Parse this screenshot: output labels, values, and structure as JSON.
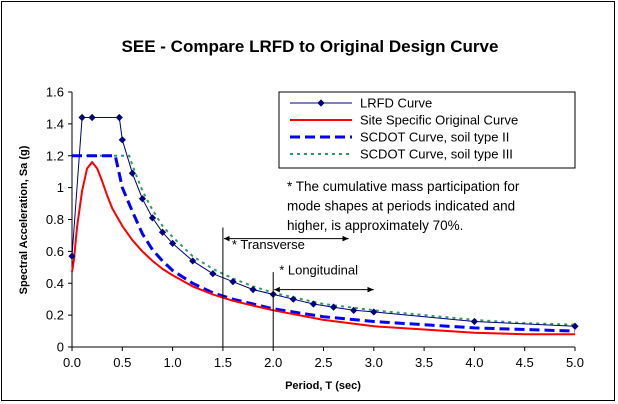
{
  "chart_data": {
    "type": "line",
    "title": "SEE - Compare LRFD to Original Design Curve",
    "xlabel": "Period, T (sec)",
    "ylabel": "Spectral Acceleration, Sa (g)",
    "xlim": [
      0,
      5
    ],
    "ylim": [
      0,
      1.6
    ],
    "x_ticks": [
      "0.0",
      "0.5",
      "1.0",
      "1.5",
      "2.0",
      "2.5",
      "3.0",
      "3.5",
      "4.0",
      "4.5",
      "5.0"
    ],
    "y_ticks": [
      "0",
      "0.2",
      "0.4",
      "0.6",
      "0.8",
      "1",
      "1.2",
      "1.4",
      "1.6"
    ],
    "grid": false,
    "legend_position": "top-right",
    "series": [
      {
        "name": "LRFD Curve",
        "color": "#000080",
        "style": "solid-diamond",
        "x": [
          0.0,
          0.1,
          0.2,
          0.47,
          0.5,
          0.6,
          0.7,
          0.8,
          0.9,
          1.0,
          1.2,
          1.4,
          1.6,
          1.8,
          2.0,
          2.2,
          2.4,
          2.6,
          2.8,
          3.0,
          4.0,
          5.0
        ],
        "y": [
          0.57,
          1.44,
          1.44,
          1.44,
          1.3,
          1.09,
          0.93,
          0.81,
          0.72,
          0.65,
          0.54,
          0.46,
          0.41,
          0.36,
          0.33,
          0.3,
          0.27,
          0.25,
          0.23,
          0.22,
          0.16,
          0.13
        ]
      },
      {
        "name": "Site Specific Original Curve",
        "color": "#ff0000",
        "style": "solid",
        "x": [
          0.0,
          0.02,
          0.05,
          0.1,
          0.15,
          0.2,
          0.25,
          0.3,
          0.35,
          0.4,
          0.5,
          0.6,
          0.7,
          0.8,
          0.9,
          1.0,
          1.2,
          1.4,
          1.6,
          1.8,
          2.0,
          2.5,
          3.0,
          3.5,
          4.0,
          4.5,
          5.0
        ],
        "y": [
          0.47,
          0.55,
          0.75,
          0.98,
          1.12,
          1.16,
          1.12,
          1.04,
          0.95,
          0.87,
          0.76,
          0.67,
          0.6,
          0.54,
          0.49,
          0.45,
          0.38,
          0.33,
          0.29,
          0.26,
          0.23,
          0.17,
          0.13,
          0.11,
          0.09,
          0.08,
          0.08
        ]
      },
      {
        "name": "SCDOT Curve, soil type II",
        "color": "#0000ff",
        "style": "dashed",
        "x": [
          0.0,
          0.1,
          0.2,
          0.3,
          0.4,
          0.43,
          0.5,
          0.6,
          0.7,
          0.8,
          0.9,
          1.0,
          1.2,
          1.4,
          1.6,
          1.8,
          2.0,
          2.5,
          3.0,
          3.5,
          4.0,
          4.5,
          5.0
        ],
        "y": [
          1.2,
          1.2,
          1.2,
          1.2,
          1.2,
          1.2,
          1.0,
          0.85,
          0.71,
          0.61,
          0.54,
          0.48,
          0.4,
          0.34,
          0.3,
          0.27,
          0.24,
          0.19,
          0.16,
          0.14,
          0.12,
          0.11,
          0.1
        ]
      },
      {
        "name": "SCDOT Curve, soil type III",
        "color": "#339966",
        "style": "dotted",
        "x": [
          0.0,
          0.1,
          0.2,
          0.3,
          0.4,
          0.5,
          0.57,
          0.6,
          0.7,
          0.8,
          0.9,
          1.0,
          1.2,
          1.4,
          1.6,
          1.8,
          2.0,
          2.5,
          3.0,
          3.5,
          4.0,
          4.5,
          5.0
        ],
        "y": [
          1.2,
          1.2,
          1.2,
          1.2,
          1.2,
          1.2,
          1.2,
          1.14,
          0.98,
          0.86,
          0.76,
          0.69,
          0.57,
          0.49,
          0.43,
          0.38,
          0.34,
          0.27,
          0.23,
          0.2,
          0.17,
          0.15,
          0.14
        ]
      }
    ],
    "annotations": {
      "note": [
        "* The cumulative mass participation for",
        "mode shapes at periods indicated and",
        "higher, is approximately 70%."
      ],
      "transverse": {
        "label": "* Transverse",
        "period": 1.5,
        "arrow_to": 2.75,
        "arrow_y": 0.68
      },
      "longitudinal": {
        "label": "* Longitudinal",
        "period": 2.0,
        "arrow_to": 3.0,
        "arrow_y": 0.36
      }
    }
  }
}
